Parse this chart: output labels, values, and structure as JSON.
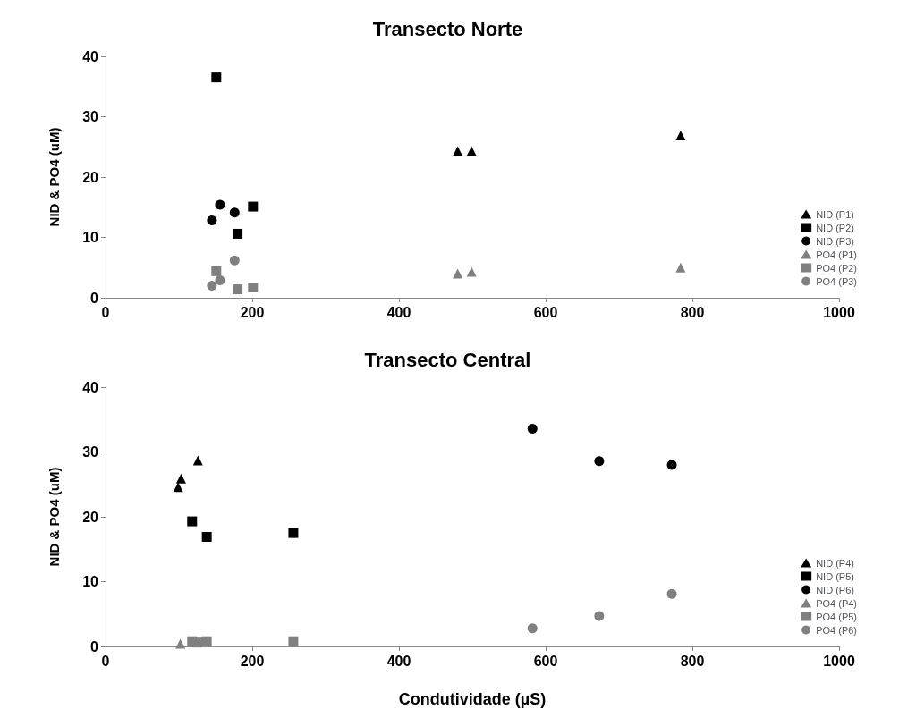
{
  "chart_data": [
    {
      "type": "scatter",
      "title": "Transecto Norte",
      "ylabel": "NID & PO4 (uM)",
      "xlim": [
        0,
        1000
      ],
      "xticks": [
        0,
        200,
        400,
        600,
        800,
        1000
      ],
      "ylim": [
        0,
        40
      ],
      "yticks": [
        0,
        10,
        20,
        30,
        40
      ],
      "grid": false,
      "legend": "right",
      "series": [
        {
          "name": "NID (P1)",
          "color": "#000000",
          "marker": "triangle",
          "x": [
            480,
            499,
            784
          ],
          "values": [
            24.3,
            24.3,
            26.9
          ]
        },
        {
          "name": "NID (P2)",
          "color": "#000000",
          "marker": "square",
          "x": [
            151,
            201,
            180
          ],
          "values": [
            36.5,
            15.1,
            10.6
          ]
        },
        {
          "name": "NID (P3)",
          "color": "#000000",
          "marker": "circle",
          "x": [
            156,
            176,
            145
          ],
          "values": [
            15.4,
            14.1,
            12.8
          ]
        },
        {
          "name": "PO4 (P1)",
          "color": "#808080",
          "marker": "triangle",
          "x": [
            480,
            499,
            784
          ],
          "values": [
            4.0,
            4.3,
            5.0
          ]
        },
        {
          "name": "PO4 (P2)",
          "color": "#808080",
          "marker": "square",
          "x": [
            151,
            180,
            201
          ],
          "values": [
            4.4,
            1.4,
            1.7
          ]
        },
        {
          "name": "PO4 (P3)",
          "color": "#808080",
          "marker": "circle",
          "x": [
            176,
            156,
            145
          ],
          "values": [
            6.2,
            2.9,
            2.0
          ]
        }
      ]
    },
    {
      "type": "scatter",
      "title": "Transecto Central",
      "ylabel": "NID & PO4 (uM)",
      "xlabel": "Condutividade (µS)",
      "xlim": [
        0,
        1000
      ],
      "xticks": [
        0,
        200,
        400,
        600,
        800,
        1000
      ],
      "ylim": [
        0,
        40
      ],
      "yticks": [
        0,
        10,
        20,
        30,
        40
      ],
      "grid": false,
      "legend": "right",
      "series": [
        {
          "name": "NID (P4)",
          "color": "#000000",
          "marker": "triangle",
          "x": [
            99,
            103,
            126
          ],
          "values": [
            24.6,
            25.9,
            28.7
          ]
        },
        {
          "name": "NID (P5)",
          "color": "#000000",
          "marker": "square",
          "x": [
            118,
            138,
            256
          ],
          "values": [
            19.3,
            16.9,
            17.5
          ]
        },
        {
          "name": "NID (P6)",
          "color": "#000000",
          "marker": "circle",
          "x": [
            582,
            673,
            772
          ],
          "values": [
            33.6,
            28.6,
            28.0
          ]
        },
        {
          "name": "PO4 (P4)",
          "color": "#808080",
          "marker": "triangle",
          "x": [
            102
          ],
          "values": [
            0.4
          ]
        },
        {
          "name": "PO4 (P5)",
          "color": "#808080",
          "marker": "square",
          "x": [
            118,
            125,
            138,
            256
          ],
          "values": [
            0.8,
            0.6,
            0.8,
            0.8
          ]
        },
        {
          "name": "PO4 (P6)",
          "color": "#808080",
          "marker": "circle",
          "x": [
            582,
            673,
            772
          ],
          "values": [
            2.8,
            4.7,
            8.1
          ]
        }
      ]
    }
  ]
}
